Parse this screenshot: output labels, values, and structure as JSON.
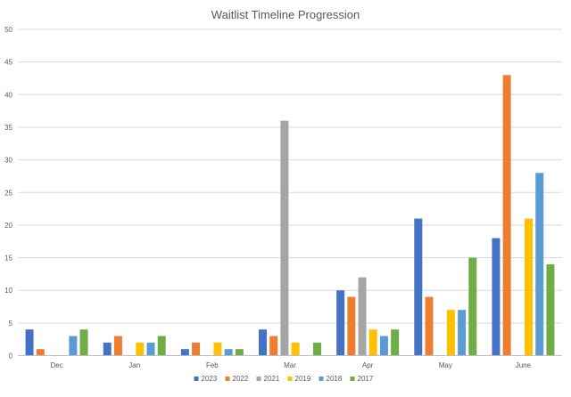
{
  "chart_data": {
    "type": "bar",
    "title": "Waitlist Timeline Progression",
    "xlabel": "",
    "ylabel": "",
    "categories": [
      "Dec",
      "Jan",
      "Feb",
      "Mar",
      "Apr",
      "May",
      "June"
    ],
    "ylim": [
      0,
      50
    ],
    "yticks": [
      0,
      5,
      10,
      15,
      20,
      25,
      30,
      35,
      40,
      45,
      50
    ],
    "grid": "horizontal",
    "legend_position": "bottom",
    "series": [
      {
        "name": "2023",
        "color": "#4472C4",
        "values": [
          4,
          2,
          1,
          4,
          10,
          21,
          18
        ]
      },
      {
        "name": "2022",
        "color": "#ED7D31",
        "values": [
          1,
          3,
          2,
          3,
          9,
          9,
          43
        ]
      },
      {
        "name": "2021",
        "color": "#A5A5A5",
        "values": [
          0,
          0,
          0,
          36,
          12,
          0,
          0
        ]
      },
      {
        "name": "2019",
        "color": "#FFC000",
        "values": [
          0,
          2,
          2,
          2,
          4,
          7,
          21
        ]
      },
      {
        "name": "2018",
        "color": "#5B9BD5",
        "values": [
          3,
          2,
          1,
          0,
          3,
          7,
          28
        ]
      },
      {
        "name": "2017",
        "color": "#70AD47",
        "values": [
          4,
          3,
          1,
          2,
          4,
          15,
          14
        ]
      }
    ]
  }
}
